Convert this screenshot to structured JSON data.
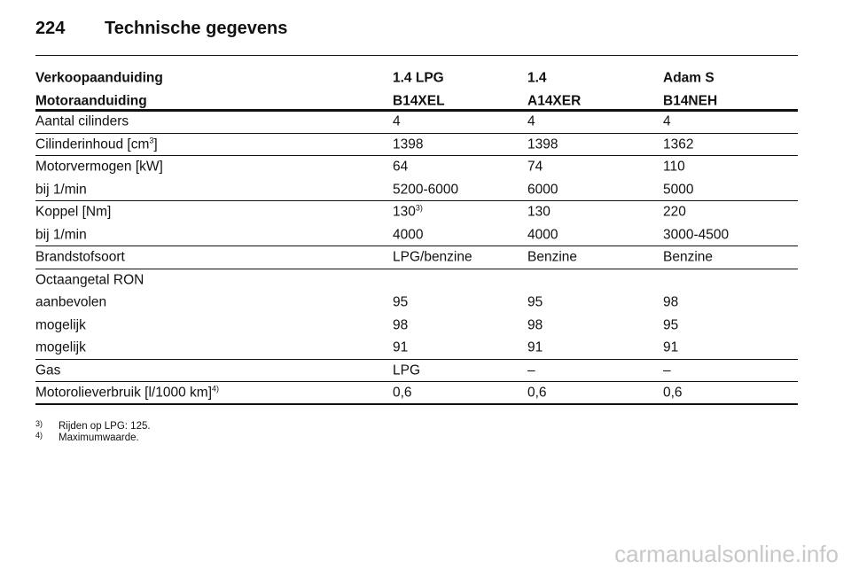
{
  "header": {
    "page": "224",
    "title": "Technische gegevens"
  },
  "table": {
    "head": [
      [
        "Verkoopaanduiding",
        "1.4 LPG",
        "1.4",
        "Adam S"
      ],
      [
        "Motoraanduiding",
        "B14XEL",
        "A14XER",
        "B14NEH"
      ]
    ],
    "groups": [
      [
        [
          "Aantal cilinders",
          "4",
          "4",
          "4"
        ]
      ],
      [
        [
          {
            "text": "Cilinderinhoud [cm",
            "sup": "3",
            "after": "]"
          },
          "1398",
          "1398",
          "1362"
        ]
      ],
      [
        [
          "Motorvermogen [kW]",
          "64",
          "74",
          "110"
        ],
        [
          "bij 1/min",
          "5200-6000",
          "6000",
          "5000"
        ]
      ],
      [
        [
          "Koppel [Nm]",
          {
            "text": "130",
            "sup": "3)"
          },
          "130",
          "220"
        ],
        [
          "bij 1/min",
          "4000",
          "4000",
          "3000-4500"
        ]
      ],
      [
        [
          "Brandstofsoort",
          "LPG/benzine",
          "Benzine",
          "Benzine"
        ]
      ],
      [
        [
          "Octaangetal RON"
        ],
        [
          "aanbevolen",
          "95",
          "95",
          "98"
        ],
        [
          "mogelijk",
          "98",
          "98",
          "95"
        ],
        [
          "mogelijk",
          "91",
          "91",
          "91"
        ]
      ],
      [
        [
          "Gas",
          "LPG",
          "–",
          "–"
        ]
      ],
      [
        [
          {
            "text": "Motorolieverbruik [l/1000 km]",
            "sup": "4)"
          },
          "0,6",
          "0,6",
          "0,6"
        ]
      ]
    ]
  },
  "footnotes": [
    {
      "mark": "3)",
      "text": "Rijden op LPG: 125."
    },
    {
      "mark": "4)",
      "text": "Maximumwaarde."
    }
  ],
  "watermark": "carmanualsonline.info"
}
